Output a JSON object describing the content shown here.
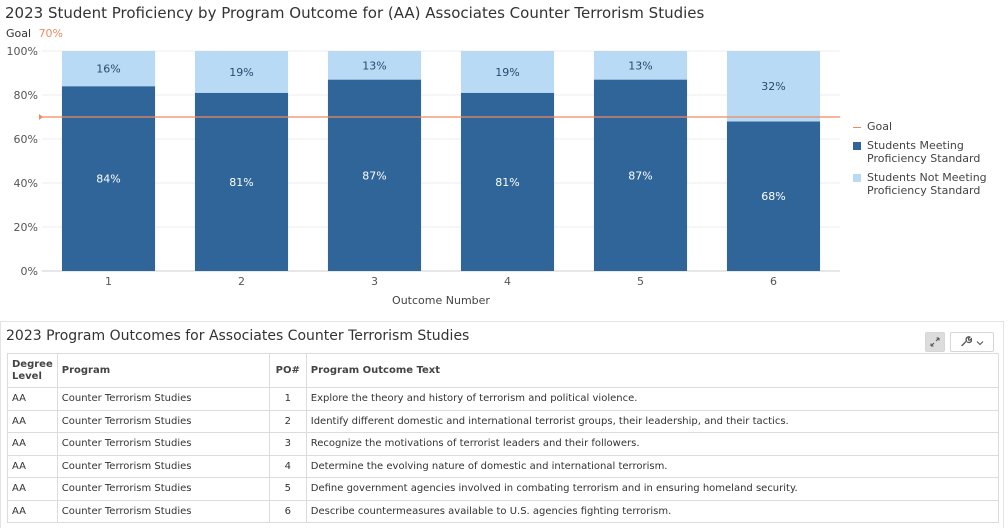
{
  "chart": {
    "title": "2023 Student Proficiency by Program Outcome for (AA) Associates Counter Terrorism Studies",
    "goal_caption_label": "Goal",
    "goal_caption_value": "70%"
  },
  "chart_data": {
    "type": "bar",
    "stacked": true,
    "categories": [
      "1",
      "2",
      "3",
      "4",
      "5",
      "6"
    ],
    "series": [
      {
        "name": "Students Meeting Proficiency Standard",
        "values": [
          84,
          81,
          87,
          81,
          87,
          68
        ],
        "color": "#30659a",
        "label_color": "#ffffff"
      },
      {
        "name": "Students Not Meeting Proficiency Standard",
        "values": [
          16,
          19,
          13,
          19,
          13,
          32
        ],
        "color": "#b9daf4",
        "label_color": "#2a4a6e"
      }
    ],
    "value_suffix": "%",
    "goal": {
      "name": "Goal",
      "value": 70,
      "color": "#f08a5d"
    },
    "xlabel": "Outcome Number",
    "ylabel": "",
    "ylim": [
      0,
      100
    ],
    "yticks": [
      "0%",
      "20%",
      "40%",
      "60%",
      "80%",
      "100%"
    ],
    "grid": true,
    "legend_position": "right"
  },
  "legend": {
    "goal": "Goal",
    "meeting": "Students Meeting Proficiency Standard",
    "not_meeting": "Students Not Meeting Proficiency Standard"
  },
  "table": {
    "title": "2023 Program Outcomes for Associates Counter Terrorism Studies",
    "headers": {
      "degree": "Degree Level",
      "program": "Program",
      "po": "PO#",
      "text": "Program Outcome Text"
    },
    "rows": [
      {
        "degree": "AA",
        "program": "Counter Terrorism Studies",
        "po": "1",
        "text": "Explore the theory and history of terrorism and political violence."
      },
      {
        "degree": "AA",
        "program": "Counter Terrorism Studies",
        "po": "2",
        "text": "Identify different domestic and international terrorist groups, their leadership, and their tactics."
      },
      {
        "degree": "AA",
        "program": "Counter Terrorism Studies",
        "po": "3",
        "text": "Recognize the motivations of terrorist leaders and their followers."
      },
      {
        "degree": "AA",
        "program": "Counter Terrorism Studies",
        "po": "4",
        "text": "Determine the evolving nature of domestic and international terrorism."
      },
      {
        "degree": "AA",
        "program": "Counter Terrorism Studies",
        "po": "5",
        "text": "Define government agencies involved in combating terrorism and in ensuring homeland security."
      },
      {
        "degree": "AA",
        "program": "Counter Terrorism Studies",
        "po": "6",
        "text": "Describe countermeasures available to U.S. agencies fighting terrorism."
      }
    ]
  },
  "toolbar": {
    "expand_icon": "expand-icon",
    "wrench_icon": "wrench-icon",
    "dropdown_icon": "chevron-down-icon"
  }
}
